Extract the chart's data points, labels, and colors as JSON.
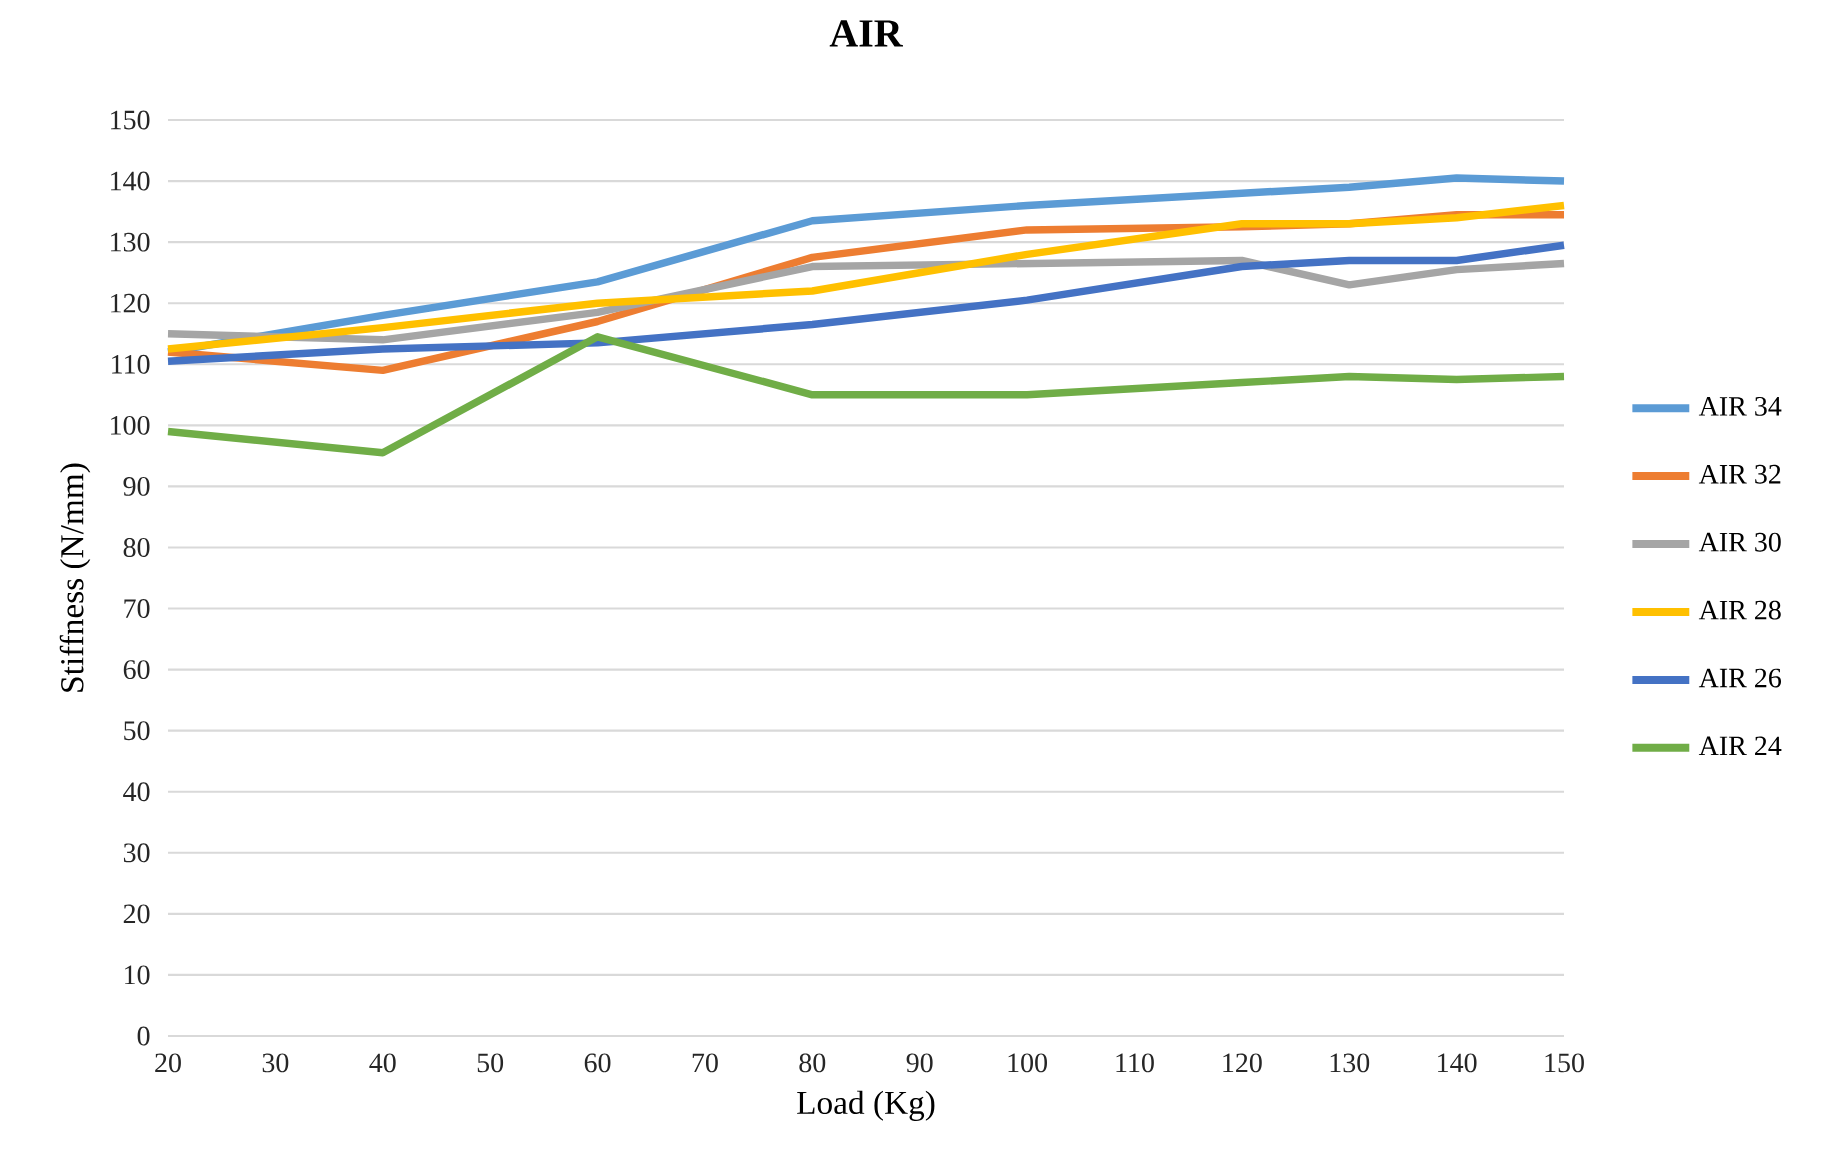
{
  "chart_data": {
    "type": "line",
    "title": "AIR",
    "xlabel": "Load (Kg)",
    "ylabel": "Stiffness (N/mm)",
    "x": [
      20,
      40,
      60,
      80,
      100,
      120,
      130,
      140,
      150
    ],
    "xlim": [
      20,
      150
    ],
    "xticks": [
      20,
      30,
      40,
      50,
      60,
      70,
      80,
      90,
      100,
      110,
      120,
      130,
      140,
      150
    ],
    "ylim": [
      0,
      150
    ],
    "yticks": [
      0,
      10,
      20,
      30,
      40,
      50,
      60,
      70,
      80,
      90,
      100,
      110,
      120,
      130,
      140,
      150
    ],
    "grid": "y",
    "legend": "right",
    "marker": "none",
    "line_style": "solid",
    "series": [
      {
        "name": "AIR 34",
        "color": "#5b9bd5",
        "values": [
          112,
          118,
          123.5,
          133.5,
          136,
          138,
          139,
          140.5,
          140
        ]
      },
      {
        "name": "AIR 32",
        "color": "#ed7d31",
        "values": [
          112,
          109,
          117,
          127.5,
          132,
          132.5,
          133,
          134.5,
          134.5
        ]
      },
      {
        "name": "AIR 30",
        "color": "#a5a5a5",
        "values": [
          115,
          114,
          118.5,
          126,
          126.5,
          127,
          123,
          125.5,
          126.5
        ]
      },
      {
        "name": "AIR 28",
        "color": "#ffc000",
        "values": [
          112.5,
          116,
          120,
          122,
          128,
          133,
          133,
          134,
          136
        ]
      },
      {
        "name": "AIR 26",
        "color": "#4472c4",
        "values": [
          110.5,
          112.5,
          113.5,
          116.5,
          120.5,
          126,
          127,
          127,
          129.5
        ]
      },
      {
        "name": "AIR 24",
        "color": "#70ad47",
        "values": [
          99,
          95.5,
          114.5,
          105,
          105,
          107,
          108,
          107.5,
          108
        ]
      }
    ]
  }
}
